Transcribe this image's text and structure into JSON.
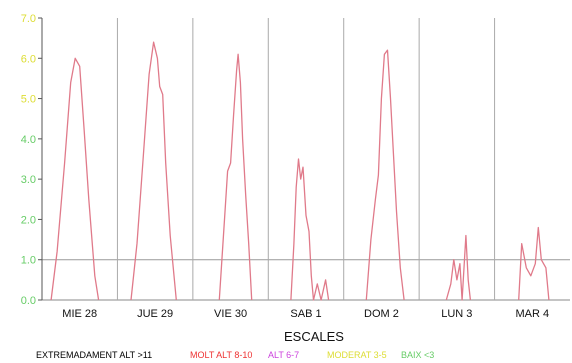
{
  "chart_data": {
    "type": "line",
    "xlabel": "ESCALES",
    "ylim": [
      0,
      7
    ],
    "yticks": [
      {
        "label": "0.0",
        "value": 0,
        "color": "#66cc66"
      },
      {
        "label": "1.0",
        "value": 1,
        "color": "#66cc66"
      },
      {
        "label": "2.0",
        "value": 2,
        "color": "#66cc66"
      },
      {
        "label": "3.0",
        "value": 3,
        "color": "#66cc66"
      },
      {
        "label": "4.0",
        "value": 4,
        "color": "#66cc66"
      },
      {
        "label": "5.0",
        "value": 5,
        "color": "#dddd33"
      },
      {
        "label": "6.0",
        "value": 6,
        "color": "#dddd33"
      },
      {
        "label": "7.0",
        "value": 7,
        "color": "#dddd33"
      }
    ],
    "reference_line": 1.0,
    "grid": "vertical day separators",
    "line_color": "#e07a8a",
    "days": [
      {
        "label": "MIE 28",
        "points": [
          [
            0.12,
            0
          ],
          [
            0.2,
            1.2
          ],
          [
            0.3,
            3.4
          ],
          [
            0.38,
            5.4
          ],
          [
            0.44,
            6.0
          ],
          [
            0.5,
            5.8
          ],
          [
            0.56,
            4.2
          ],
          [
            0.62,
            2.5
          ],
          [
            0.7,
            0.6
          ],
          [
            0.75,
            0
          ]
        ]
      },
      {
        "label": "JUE 29",
        "points": [
          [
            0.18,
            0
          ],
          [
            0.26,
            1.4
          ],
          [
            0.34,
            3.5
          ],
          [
            0.42,
            5.6
          ],
          [
            0.48,
            6.4
          ],
          [
            0.53,
            6.0
          ],
          [
            0.56,
            5.3
          ],
          [
            0.6,
            5.1
          ],
          [
            0.64,
            3.4
          ],
          [
            0.7,
            1.6
          ],
          [
            0.78,
            0
          ]
        ]
      },
      {
        "label": "VIE 30",
        "points": [
          [
            0.35,
            0
          ],
          [
            0.42,
            2.0
          ],
          [
            0.46,
            3.2
          ],
          [
            0.5,
            3.4
          ],
          [
            0.54,
            4.6
          ],
          [
            0.58,
            5.7
          ],
          [
            0.6,
            6.1
          ],
          [
            0.63,
            5.4
          ],
          [
            0.66,
            4.0
          ],
          [
            0.7,
            2.6
          ],
          [
            0.74,
            1.4
          ],
          [
            0.78,
            0
          ]
        ]
      },
      {
        "label": "SAB 1",
        "points": [
          [
            0.3,
            0
          ],
          [
            0.34,
            1.4
          ],
          [
            0.37,
            2.8
          ],
          [
            0.4,
            3.5
          ],
          [
            0.43,
            3.0
          ],
          [
            0.46,
            3.3
          ],
          [
            0.5,
            2.1
          ],
          [
            0.54,
            1.7
          ],
          [
            0.57,
            0.6
          ],
          [
            0.6,
            0
          ],
          [
            0.65,
            0.4
          ],
          [
            0.7,
            0
          ],
          [
            0.76,
            0.5
          ],
          [
            0.8,
            0
          ]
        ]
      },
      {
        "label": "DOM 2",
        "points": [
          [
            0.3,
            0
          ],
          [
            0.36,
            1.5
          ],
          [
            0.42,
            2.5
          ],
          [
            0.46,
            3.1
          ],
          [
            0.5,
            5.0
          ],
          [
            0.54,
            6.1
          ],
          [
            0.58,
            6.2
          ],
          [
            0.62,
            5.0
          ],
          [
            0.66,
            3.6
          ],
          [
            0.7,
            2.2
          ],
          [
            0.75,
            0.8
          ],
          [
            0.8,
            0
          ]
        ]
      },
      {
        "label": "LUN 3",
        "points": [
          [
            0.36,
            0
          ],
          [
            0.42,
            0.4
          ],
          [
            0.46,
            1.0
          ],
          [
            0.5,
            0.5
          ],
          [
            0.54,
            0.9
          ],
          [
            0.57,
            0
          ],
          [
            0.62,
            1.6
          ],
          [
            0.65,
            0.5
          ],
          [
            0.68,
            0
          ]
        ]
      },
      {
        "label": "MAR 4",
        "points": [
          [
            0.32,
            0
          ],
          [
            0.36,
            1.4
          ],
          [
            0.42,
            0.8
          ],
          [
            0.48,
            0.6
          ],
          [
            0.54,
            0.9
          ],
          [
            0.58,
            1.8
          ],
          [
            0.62,
            1.0
          ],
          [
            0.68,
            0.8
          ],
          [
            0.72,
            0
          ]
        ]
      }
    ],
    "legend": [
      {
        "label": "EXTREMADAMENT ALT >11",
        "color": "#000000"
      },
      {
        "label": "MOLT ALT 8-10",
        "color": "#ee3333"
      },
      {
        "label": "ALT 6-7",
        "color": "#cc44dd"
      },
      {
        "label": "MODERAT 3-5",
        "color": "#dddd33"
      },
      {
        "label": "BAIX <3",
        "color": "#66cc66"
      }
    ]
  }
}
